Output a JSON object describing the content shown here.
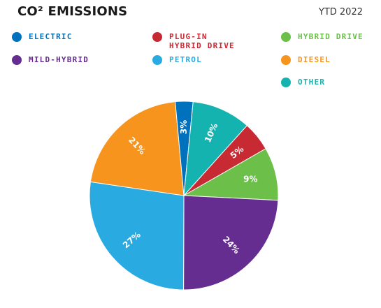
{
  "header": {
    "title": "CO² EMISSIONS",
    "period": "YTD 2022"
  },
  "chart_data": {
    "type": "pie",
    "title": "CO² EMISSIONS",
    "subtitle": "YTD 2022",
    "legend_placement": "top",
    "slices": [
      {
        "label": "PLUG-IN\nHYBRID DRIVE",
        "value": 5,
        "display": "5%",
        "color": "#c72a32"
      },
      {
        "label": "HYBRID DRIVE",
        "value": 9,
        "display": "9%",
        "color": "#6cc04a"
      },
      {
        "label": "MILD-HYBRID",
        "value": 24,
        "display": "24%",
        "color": "#662d91"
      },
      {
        "label": "PETROL",
        "value": 27,
        "display": "27%",
        "color": "#29abe2"
      },
      {
        "label": "DIESEL",
        "value": 21,
        "display": "21%",
        "color": "#f7941d"
      },
      {
        "label": "ELECTRIC",
        "value": 3,
        "display": "3%",
        "color": "#0071bc"
      },
      {
        "label": "OTHER",
        "value": 10,
        "display": "10%",
        "color": "#15b3b0"
      }
    ]
  }
}
